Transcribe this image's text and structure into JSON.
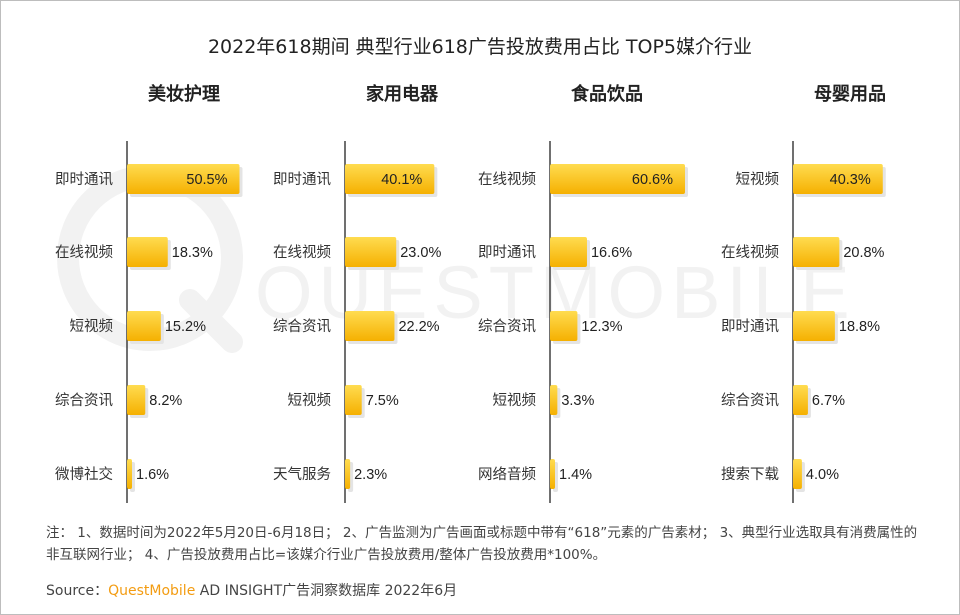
{
  "title": "2022年618期间 典型行业618广告投放费用占比 TOP5媒介行业",
  "chart_data": [
    {
      "type": "bar",
      "orientation": "horizontal",
      "title": "美妆护理",
      "categories": [
        "即时通讯",
        "在线视频",
        "短视频",
        "综合资讯",
        "微博社交"
      ],
      "values": [
        50.5,
        18.3,
        15.2,
        8.2,
        1.6
      ],
      "labels": [
        "50.5%",
        "18.3%",
        "15.2%",
        "8.2%",
        "1.6%"
      ],
      "unit": "%"
    },
    {
      "type": "bar",
      "orientation": "horizontal",
      "title": "家用电器",
      "categories": [
        "即时通讯",
        "在线视频",
        "综合资讯",
        "短视频",
        "天气服务"
      ],
      "values": [
        40.1,
        23.0,
        22.2,
        7.5,
        2.3
      ],
      "labels": [
        "40.1%",
        "23.0%",
        "22.2%",
        "7.5%",
        "2.3%"
      ],
      "unit": "%"
    },
    {
      "type": "bar",
      "orientation": "horizontal",
      "title": "食品饮品",
      "categories": [
        "在线视频",
        "即时通讯",
        "综合资讯",
        "短视频",
        "网络音频"
      ],
      "values": [
        60.6,
        16.6,
        12.3,
        3.3,
        1.4
      ],
      "labels": [
        "60.6%",
        "16.6%",
        "12.3%",
        "3.3%",
        "1.4%"
      ],
      "unit": "%"
    },
    {
      "type": "bar",
      "orientation": "horizontal",
      "title": "母婴用品",
      "categories": [
        "短视频",
        "在线视频",
        "即时通讯",
        "综合资讯",
        "搜索下载"
      ],
      "values": [
        40.3,
        20.8,
        18.8,
        6.7,
        4.0
      ],
      "labels": [
        "40.3%",
        "20.8%",
        "18.8%",
        "6.7%",
        "4.0%"
      ],
      "unit": "%"
    }
  ],
  "colors": {
    "bar_light": "#ffd23a",
    "bar_dark": "#f6b200",
    "axis": "#333333",
    "text": "#333333"
  },
  "note": "注： 1、数据时间为2022年5月20日-6月18日； 2、广告监测为广告画面或标题中带有“618”元素的广告素材； 3、典型行业选取具有消费属性的非互联网行业； 4、广告投放费用占比=该媒介行业广告投放费用/整体广告投放费用*100%。",
  "source": {
    "prefix": "Source：",
    "brand": "QuestMobile",
    "suffix": " AD INSIGHT广告洞察数据库 2022年6月"
  },
  "watermark": "QUESTMOBILE"
}
